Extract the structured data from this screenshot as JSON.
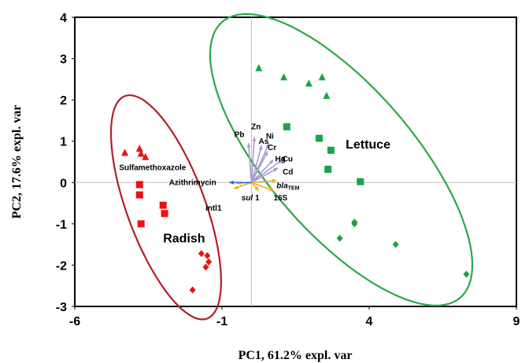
{
  "chart_data": {
    "type": "scatter",
    "xlabel": "PC1,  61.2% expl. var",
    "ylabel": "PC2,  17.6% expl. var",
    "xlim": [
      -6,
      9
    ],
    "ylim": [
      -3,
      4
    ],
    "x_ticks": [
      "-6",
      "-1",
      "4",
      "9"
    ],
    "y_ticks": [
      "4",
      "3",
      "2",
      "1",
      "0",
      "-1",
      "-2",
      "-3"
    ],
    "grid": false,
    "colors": {
      "radish": "#ee1111",
      "lettuce": "#1aa34a",
      "radish_ellipse": "#b0202a",
      "lettuce_ellipse": "#2aa84a",
      "metal_vector": "#a99bd0",
      "gene_vector": "#f0b020",
      "antibiotic_vector": "#2a6ec8"
    },
    "groups": [
      {
        "name": "Radish",
        "points": [
          {
            "x": -4.3,
            "y": 0.72,
            "shape": "triangle"
          },
          {
            "x": -3.8,
            "y": 0.82,
            "shape": "triangle"
          },
          {
            "x": -3.6,
            "y": 0.62,
            "shape": "triangle"
          },
          {
            "x": -3.75,
            "y": 0.7,
            "shape": "triangle"
          },
          {
            "x": -3.8,
            "y": -0.05,
            "shape": "square"
          },
          {
            "x": -3.8,
            "y": -0.3,
            "shape": "square"
          },
          {
            "x": -3.0,
            "y": -0.55,
            "shape": "square"
          },
          {
            "x": -2.95,
            "y": -0.75,
            "shape": "square"
          },
          {
            "x": -3.75,
            "y": -1.0,
            "shape": "square"
          },
          {
            "x": -1.7,
            "y": -1.72,
            "shape": "diamond"
          },
          {
            "x": -1.5,
            "y": -1.77,
            "shape": "diamond"
          },
          {
            "x": -1.45,
            "y": -1.92,
            "shape": "diamond"
          },
          {
            "x": -1.55,
            "y": -2.05,
            "shape": "diamond"
          },
          {
            "x": -2.0,
            "y": -2.6,
            "shape": "diamond"
          }
        ]
      },
      {
        "name": "Lettuce",
        "points": [
          {
            "x": 0.25,
            "y": 2.77,
            "shape": "triangle"
          },
          {
            "x": 1.1,
            "y": 2.55,
            "shape": "triangle"
          },
          {
            "x": 1.95,
            "y": 2.4,
            "shape": "triangle"
          },
          {
            "x": 2.4,
            "y": 2.55,
            "shape": "triangle"
          },
          {
            "x": 2.55,
            "y": 2.1,
            "shape": "triangle"
          },
          {
            "x": 1.2,
            "y": 1.35,
            "shape": "square"
          },
          {
            "x": 2.3,
            "y": 1.07,
            "shape": "square"
          },
          {
            "x": 2.7,
            "y": 0.78,
            "shape": "square"
          },
          {
            "x": 2.6,
            "y": 0.32,
            "shape": "square"
          },
          {
            "x": 3.7,
            "y": 0.02,
            "shape": "square"
          },
          {
            "x": 3.5,
            "y": -0.96,
            "shape": "diamond"
          },
          {
            "x": 3.5,
            "y": -1.0,
            "shape": "diamond"
          },
          {
            "x": 3.0,
            "y": -1.35,
            "shape": "diamond"
          },
          {
            "x": 4.9,
            "y": -1.5,
            "shape": "diamond"
          },
          {
            "x": 7.3,
            "y": -2.22,
            "shape": "diamond"
          }
        ]
      }
    ],
    "ellipses": [
      {
        "group": "Radish",
        "cx": -2.9,
        "cy": -0.6,
        "rx": 3.05,
        "ry": 1.25,
        "angle_deg": -60
      },
      {
        "group": "Lettuce",
        "cx": 3.05,
        "cy": 0.55,
        "rx": 5.3,
        "ry": 2.05,
        "angle_deg": -36
      }
    ],
    "group_labels": [
      {
        "text": "Radish",
        "x": -3.0,
        "y": -1.45
      },
      {
        "text": "Lettuce",
        "x": 3.2,
        "y": 0.82
      }
    ],
    "vectors": [
      {
        "label": "Pb",
        "x": -0.1,
        "y": 0.95,
        "color_key": "metal_vector"
      },
      {
        "label": "Zn",
        "x": 0.1,
        "y": 1.1,
        "color_key": "metal_vector"
      },
      {
        "label": "As",
        "x": 0.35,
        "y": 0.9,
        "color_key": "metal_vector"
      },
      {
        "label": "Ni",
        "x": 0.6,
        "y": 0.95,
        "color_key": "metal_vector"
      },
      {
        "label": "Cr",
        "x": 0.55,
        "y": 0.75,
        "color_key": "metal_vector"
      },
      {
        "label": "Hg",
        "x": 0.75,
        "y": 0.55,
        "color_key": "metal_vector"
      },
      {
        "label": "Cu",
        "x": 1.05,
        "y": 0.55,
        "color_key": "metal_vector"
      },
      {
        "label": "Cd",
        "x": 0.9,
        "y": 0.35,
        "color_key": "metal_vector"
      },
      {
        "label": "blaTEM",
        "x": 0.85,
        "y": 0.05,
        "color_key": "gene_vector"
      },
      {
        "label": "16S",
        "x": 0.75,
        "y": -0.2,
        "color_key": "gene_vector"
      },
      {
        "label": "sul 1",
        "x": 0.25,
        "y": -0.2,
        "color_key": "gene_vector"
      },
      {
        "label": "intl1",
        "x": -0.6,
        "y": -0.15,
        "color_key": "gene_vector"
      },
      {
        "label": "Azithrimycin",
        "x": -0.5,
        "y": -0.02,
        "color_key": "gene_vector"
      },
      {
        "label": "Sulfamethoxazole",
        "x": -0.75,
        "y": 0.0,
        "color_key": "antibiotic_vector"
      }
    ]
  }
}
